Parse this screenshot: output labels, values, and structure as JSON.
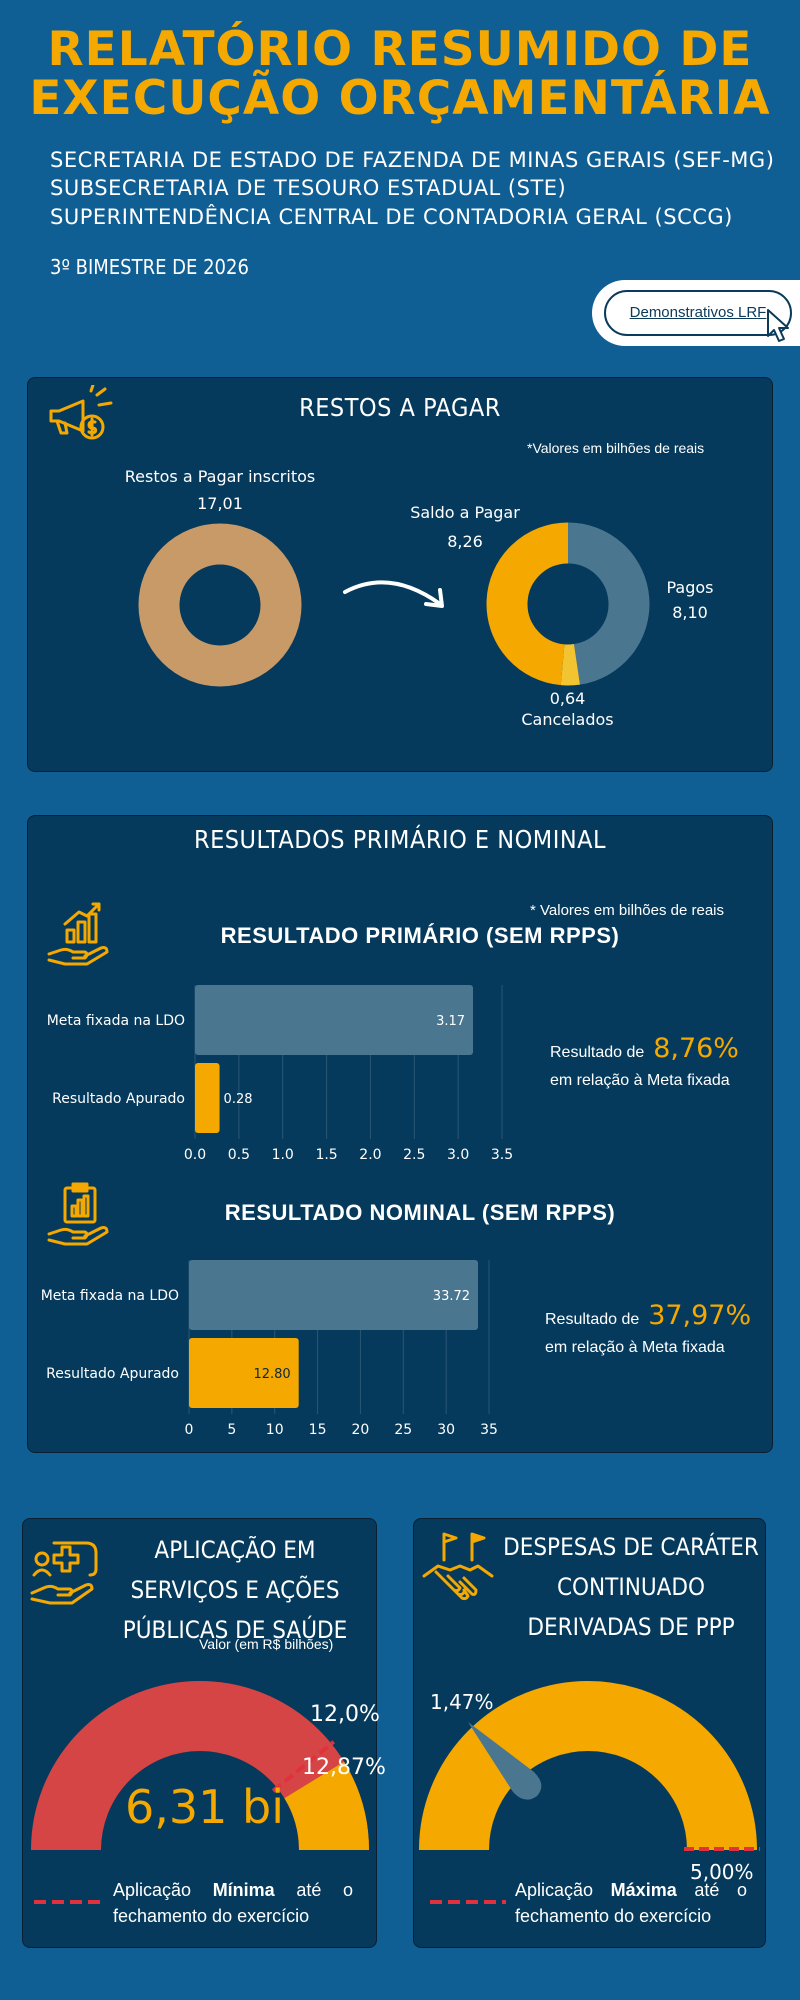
{
  "header": {
    "title_line1": "RELATÓRIO RESUMIDO DE",
    "title_line2": "EXECUÇÃO ORÇAMENTÁRIA",
    "sub1": "SECRETARIA DE ESTADO DE FAZENDA DE MINAS GERAIS (SEF-MG)",
    "sub2": "SUBSECRETARIA DE TESOURO ESTADUAL (STE)",
    "sub3": "SUPERINTENDÊNCIA CENTRAL DE CONTADORIA GERAL (SCCG)",
    "period": "3º BIMESTRE DE 2026",
    "lrf_label": "Demonstrativos LRF"
  },
  "restos": {
    "title": "RESTOS A PAGAR",
    "note": "*Valores em bilhões de reais",
    "inscritos_label": "Restos a Pagar inscritos",
    "inscritos_value": "17,01",
    "saldo_label": "Saldo a Pagar",
    "saldo_value": "8,26",
    "pagos_label": "Pagos",
    "pagos_value": "8,10",
    "cancelados_value": "0,64",
    "cancelados_label": "Cancelados"
  },
  "resultados": {
    "title": "RESULTADOS PRIMÁRIO E NOMINAL",
    "note": "* Valores em bilhões de reais",
    "primario_title": "RESULTADO PRIMÁRIO (SEM RPPS)",
    "nominal_title": "RESULTADO NOMINAL (SEM RPPS)",
    "res_prefix": "Resultado de",
    "res_suffix": "em relação à Meta fixada",
    "primario_pct": "8,76%",
    "nominal_pct": "37,97%"
  },
  "saude": {
    "title": "APLICAÇÃO EM SERVIÇOS E AÇÕES PÚBLICAS DE SAÚDE",
    "note": "Valor (em R$ bilhões)",
    "value": "6,31 bi",
    "pct_min": "12,0%",
    "pct_actual": "12,87%",
    "legend_pre": "Aplicação ",
    "legend_bold": "Mínima",
    "legend_post": " até o fechamento do exercício"
  },
  "ppp": {
    "title": "DESPESAS DE CARÁTER CONTINUADO DERIVADAS DE PPP",
    "pct_actual": "1,47%",
    "pct_max": "5,00%",
    "legend_pre": "Aplicação ",
    "legend_bold": "Máxima",
    "legend_post": " até o fechamento do exercício"
  },
  "colors": {
    "background": "#0f5f94",
    "panel": "#053a5c",
    "accent": "#f5a800",
    "bar_meta": "#4a7690",
    "donut_inscritos": "#c89a68",
    "gauge_red": "#d64545",
    "dashed_red": "#e0323c"
  },
  "chart_data": [
    {
      "type": "pie",
      "labels": [
        "Restos a Pagar inscritos"
      ],
      "values": [
        17.01
      ]
    },
    {
      "type": "pie",
      "labels": [
        "Pagos",
        "Cancelados",
        "Saldo a Pagar"
      ],
      "values": [
        8.1,
        0.64,
        8.26
      ]
    },
    {
      "type": "bar",
      "title": "RESULTADO PRIMÁRIO (SEM RPPS)",
      "categories": [
        "Meta fixada na LDO",
        "Resultado Apurado"
      ],
      "values": [
        3.17,
        0.28
      ],
      "value_labels": [
        "3.17",
        "0.28"
      ],
      "xlim": [
        0,
        3.5
      ],
      "ticks": [
        "0.0",
        "0.5",
        "1.0",
        "1.5",
        "2.0",
        "2.5",
        "3.0",
        "3.5"
      ]
    },
    {
      "type": "bar",
      "title": "RESULTADO NOMINAL (SEM RPPS)",
      "categories": [
        "Meta fixada na LDO",
        "Resultado Apurado"
      ],
      "values": [
        33.72,
        12.8
      ],
      "value_labels": [
        "33.72",
        "12.80"
      ],
      "xlim": [
        0,
        35
      ],
      "ticks": [
        "0",
        "5",
        "10",
        "15",
        "20",
        "25",
        "30",
        "35"
      ]
    }
  ]
}
